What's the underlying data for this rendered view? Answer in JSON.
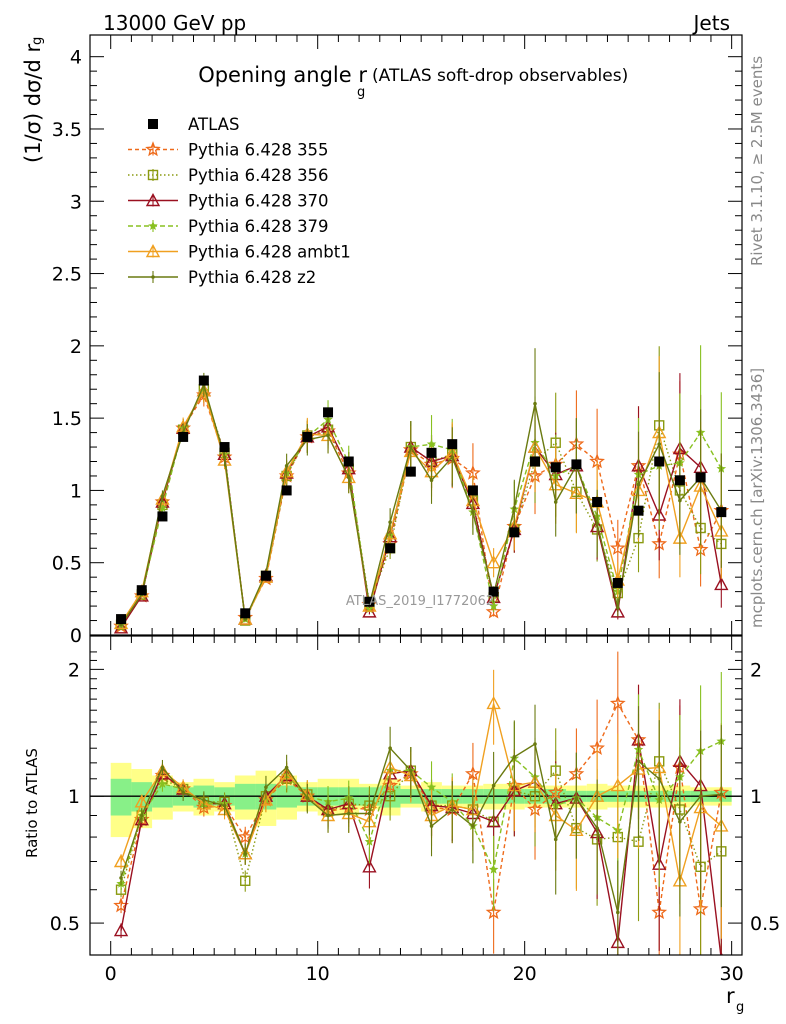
{
  "header": {
    "energy_label": "13000 GeV pp",
    "category_label": "Jets"
  },
  "side_labels": {
    "rivet": "Rivet 3.1.10, ≥ 2.5M events",
    "mcplots": "mcplots.cern.ch [arXiv:1306.3436]"
  },
  "watermark": "ATLAS_2019_I1772062",
  "chart_data": [
    {
      "type": "line",
      "panel": "main",
      "title_main": "Opening angle r",
      "title_sub": "g",
      "title_suffix": "(ATLAS soft-drop observables)",
      "ylabel": "(1/σ) dσ/d r",
      "ylabel_sub": "g",
      "xlim": [
        -1,
        30.5
      ],
      "ylim": [
        0,
        4.15
      ],
      "yticks": [
        0,
        0.5,
        1,
        1.5,
        2,
        2.5,
        3,
        3.5,
        4
      ],
      "yticklabels": [
        "0",
        "0.5",
        "1",
        "1.5",
        "2",
        "2.5",
        "3",
        "3.5",
        "4"
      ],
      "legend_position": "top-left",
      "x": [
        0.5,
        1.5,
        2.5,
        3.5,
        4.5,
        5.5,
        6.5,
        7.5,
        8.5,
        9.5,
        10.5,
        11.5,
        12.5,
        13.5,
        14.5,
        15.5,
        16.5,
        17.5,
        18.5,
        19.5,
        20.5,
        21.5,
        22.5,
        23.5,
        24.5,
        25.5,
        26.5,
        27.5,
        28.5,
        29.5
      ],
      "series": [
        {
          "name": "ATLAS",
          "color": "#000000",
          "marker": "square-filled",
          "dash": "none",
          "values": [
            0.11,
            0.31,
            0.82,
            1.37,
            1.76,
            1.3,
            0.15,
            0.41,
            1.0,
            1.37,
            1.54,
            1.2,
            0.23,
            0.6,
            1.13,
            1.26,
            1.32,
            1.0,
            0.3,
            0.71,
            1.2,
            1.16,
            1.18,
            0.92,
            0.36,
            0.86,
            1.2,
            1.07,
            1.09,
            0.85
          ]
        },
        {
          "name": "Pythia 6.428 355",
          "color": "#ee6a1a",
          "marker": "star-open",
          "dash": "4,3",
          "values": [
            0.06,
            0.27,
            0.92,
            1.43,
            1.66,
            1.23,
            0.12,
            0.39,
            1.1,
            1.37,
            1.41,
            1.12,
            0.21,
            0.63,
            1.28,
            1.18,
            1.22,
            1.12,
            0.16,
            0.75,
            1.1,
            1.18,
            1.32,
            1.2,
            0.6,
            1.17,
            0.63,
            1.25,
            0.59,
            0.86
          ]
        },
        {
          "name": "Pythia 6.428 356",
          "color": "#8a9a10",
          "marker": "square-open",
          "dash": "1.5,2.5",
          "values": [
            0.07,
            0.28,
            0.9,
            1.42,
            1.7,
            1.26,
            0.1,
            0.41,
            1.1,
            1.38,
            1.42,
            1.15,
            0.22,
            0.6,
            1.3,
            1.2,
            1.25,
            0.93,
            0.26,
            0.73,
            1.2,
            1.33,
            0.99,
            0.73,
            0.29,
            0.67,
            1.45,
            1.0,
            0.74,
            0.63
          ]
        },
        {
          "name": "Pythia 6.428 370",
          "color": "#9a1020",
          "marker": "triangle-open",
          "dash": "none",
          "values": [
            0.05,
            0.27,
            0.92,
            1.43,
            1.69,
            1.25,
            0.11,
            0.41,
            1.12,
            1.37,
            1.44,
            1.15,
            0.16,
            0.68,
            1.3,
            1.2,
            1.24,
            0.91,
            0.26,
            0.73,
            1.3,
            1.11,
            1.17,
            0.75,
            0.16,
            1.17,
            0.83,
            1.29,
            1.16,
            0.35
          ]
        },
        {
          "name": "Pythia 6.428 379",
          "color": "#88c020",
          "marker": "star-filled",
          "dash": "5,3",
          "values": [
            0.07,
            0.28,
            0.88,
            1.43,
            1.69,
            1.25,
            0.11,
            0.4,
            1.12,
            1.37,
            1.49,
            1.19,
            0.18,
            0.69,
            1.3,
            1.32,
            1.28,
            0.85,
            0.2,
            0.87,
            1.33,
            1.1,
            1.17,
            0.82,
            0.3,
            1.11,
            1.17,
            1.19,
            1.4,
            1.15
          ]
        },
        {
          "name": "Pythia 6.428 ambt1",
          "color": "#f0a020",
          "marker": "triangle-open",
          "dash": "none",
          "values": [
            0.08,
            0.3,
            0.94,
            1.44,
            1.69,
            1.21,
            0.11,
            0.4,
            1.13,
            1.39,
            1.38,
            1.09,
            0.2,
            0.7,
            1.27,
            1.13,
            1.26,
            0.93,
            0.5,
            0.75,
            1.3,
            1.04,
            0.98,
            0.92,
            0.38,
            1.0,
            1.4,
            0.67,
            1.03,
            0.72
          ]
        },
        {
          "name": "Pythia 6.428 z2",
          "color": "#6a7a10",
          "marker": "dot",
          "dash": "none",
          "values": [
            0.07,
            0.28,
            0.96,
            1.4,
            1.73,
            1.23,
            0.11,
            0.43,
            1.17,
            1.35,
            1.38,
            1.09,
            0.21,
            0.78,
            1.3,
            1.07,
            1.23,
            0.85,
            0.28,
            0.88,
            1.6,
            0.92,
            1.17,
            0.77,
            0.19,
            1.04,
            1.32,
            0.93,
            1.09,
            0.86
          ]
        }
      ]
    },
    {
      "type": "line",
      "panel": "ratio",
      "ylabel": "Ratio to ATLAS",
      "xlabel": "r",
      "xlabel_sub": "g",
      "xlim": [
        -1,
        30.5
      ],
      "ylim": [
        0.42,
        2.4
      ],
      "log_y": true,
      "xticks": [
        0,
        10,
        20,
        30
      ],
      "xticklabels": [
        "0",
        "10",
        "20",
        "30"
      ],
      "yticks": [
        0.5,
        1,
        2
      ],
      "yticklabels": [
        "0.5",
        "1",
        "2"
      ],
      "reference_line": 1,
      "band_yellow_halfwidth": [
        0.2,
        0.16,
        0.12,
        0.08,
        0.1,
        0.08,
        0.12,
        0.15,
        0.12,
        0.08,
        0.1,
        0.1,
        0.07,
        0.1,
        0.06,
        0.08,
        0.06,
        0.06,
        0.07,
        0.07,
        0.06,
        0.06,
        0.06,
        0.07,
        0.06,
        0.06,
        0.06,
        0.06,
        0.05,
        0.05
      ],
      "band_green_halfwidth": [
        0.1,
        0.08,
        0.06,
        0.05,
        0.06,
        0.05,
        0.07,
        0.07,
        0.06,
        0.05,
        0.05,
        0.05,
        0.05,
        0.06,
        0.04,
        0.04,
        0.04,
        0.04,
        0.04,
        0.04,
        0.04,
        0.04,
        0.03,
        0.03,
        0.03,
        0.03,
        0.03,
        0.03,
        0.03,
        0.03
      ],
      "series": [
        {
          "name": "Pythia 6.428 355",
          "values": [
            0.55,
            0.88,
            1.12,
            1.04,
            0.94,
            0.95,
            0.8,
            0.98,
            1.1,
            1.0,
            0.92,
            0.94,
            0.93,
            1.06,
            1.13,
            0.94,
            0.93,
            1.13,
            0.53,
            1.06,
            0.93,
            1.02,
            1.13,
            1.3,
            1.66,
            1.36,
            0.53,
            1.17,
            0.54,
            1.02
          ]
        },
        {
          "name": "Pythia 6.428 356",
          "values": [
            0.6,
            0.9,
            1.1,
            1.04,
            0.97,
            0.97,
            0.63,
            1.0,
            1.1,
            1.01,
            0.92,
            0.96,
            0.95,
            1.0,
            1.15,
            0.95,
            0.95,
            0.93,
            0.87,
            1.03,
            1.0,
            1.15,
            0.84,
            0.79,
            0.8,
            0.78,
            1.21,
            0.93,
            0.68,
            0.74
          ]
        },
        {
          "name": "Pythia 6.428 370",
          "values": [
            0.48,
            0.88,
            1.13,
            1.04,
            0.96,
            0.96,
            0.73,
            1.0,
            1.12,
            1.0,
            0.93,
            0.96,
            0.68,
            1.13,
            1.15,
            0.95,
            0.94,
            0.91,
            0.87,
            1.03,
            1.08,
            0.96,
            0.99,
            0.82,
            0.45,
            1.36,
            0.69,
            1.21,
            1.06,
            0.41
          ]
        },
        {
          "name": "Pythia 6.428 379",
          "values": [
            0.62,
            0.9,
            1.07,
            1.04,
            0.96,
            0.96,
            0.73,
            0.98,
            1.12,
            1.0,
            0.97,
            0.99,
            0.78,
            1.15,
            1.15,
            1.05,
            0.97,
            0.85,
            0.67,
            1.23,
            1.11,
            0.95,
            0.99,
            0.89,
            0.83,
            1.29,
            0.98,
            1.11,
            1.28,
            1.35
          ]
        },
        {
          "name": "Pythia 6.428 ambt1",
          "values": [
            0.7,
            0.97,
            1.15,
            1.05,
            0.96,
            0.93,
            0.73,
            0.98,
            1.13,
            1.01,
            0.9,
            0.91,
            0.87,
            1.17,
            1.12,
            0.9,
            0.95,
            0.93,
            1.66,
            1.06,
            1.08,
            0.9,
            0.83,
            1.0,
            1.06,
            1.16,
            1.17,
            0.63,
            0.94,
            0.85
          ]
        },
        {
          "name": "Pythia 6.428 z2",
          "values": [
            0.64,
            0.9,
            1.17,
            1.02,
            0.98,
            0.95,
            0.73,
            1.05,
            1.17,
            0.99,
            0.9,
            0.91,
            0.91,
            1.3,
            1.15,
            0.85,
            0.93,
            0.85,
            1.06,
            1.24,
            1.33,
            0.79,
            0.99,
            0.84,
            0.53,
            1.21,
            1.1,
            0.87,
            1.0,
            1.01
          ]
        }
      ]
    }
  ]
}
